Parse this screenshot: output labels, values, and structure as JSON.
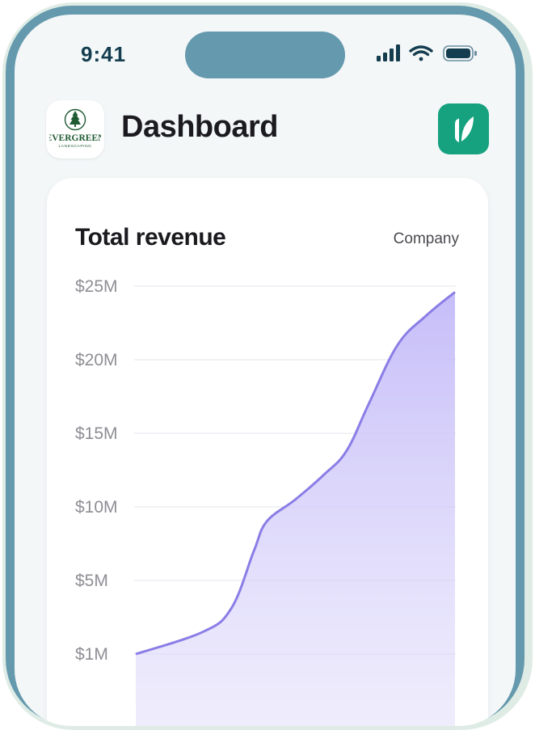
{
  "status_bar": {
    "time": "9:41",
    "icons": [
      "signal-icon",
      "wifi-icon",
      "battery-icon"
    ]
  },
  "header": {
    "logo": {
      "name": "EVERGREEN",
      "tagline": "LANDSCAPING"
    },
    "title": "Dashboard",
    "brand_icon": "leaf-icon"
  },
  "colors": {
    "frame": "#6599ad",
    "brand": "#16a27f",
    "line": "#8a7ee6",
    "fill": "#c8c0f9"
  },
  "card": {
    "title": "Total revenue",
    "filter_label": "Company"
  },
  "chart_data": {
    "type": "area",
    "title": "Total revenue",
    "ylabel": "",
    "xlabel": "",
    "y_ticks": [
      {
        "value": 25,
        "label": "$25M"
      },
      {
        "value": 20,
        "label": "$20M"
      },
      {
        "value": 15,
        "label": "$15M"
      },
      {
        "value": 10,
        "label": "$10M"
      },
      {
        "value": 5,
        "label": "$5M"
      },
      {
        "value": 1,
        "label": "$1M"
      }
    ],
    "ylim": [
      1,
      25
    ],
    "grid": true,
    "series": [
      {
        "values": [
          [
            0,
            1.0
          ],
          [
            0.21,
            2.2
          ],
          [
            0.3,
            3.5
          ],
          [
            0.37,
            7.0
          ],
          [
            0.41,
            9.0
          ],
          [
            0.5,
            10.5
          ],
          [
            0.59,
            12.2
          ],
          [
            0.66,
            13.8
          ],
          [
            0.73,
            17.0
          ],
          [
            0.82,
            21.0
          ],
          [
            0.91,
            23.0
          ],
          [
            1.0,
            24.6
          ]
        ]
      }
    ]
  }
}
